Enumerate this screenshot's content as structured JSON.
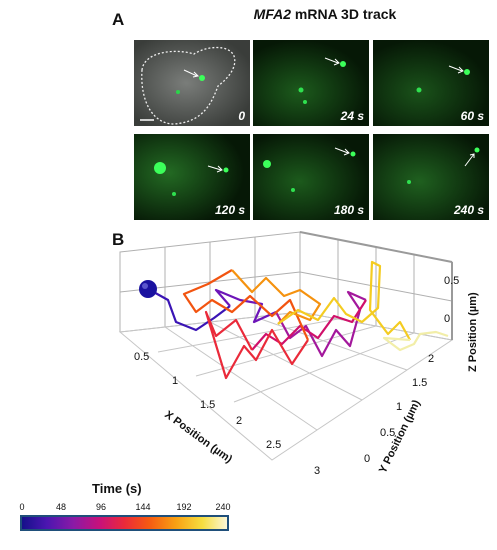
{
  "panel_a": {
    "label": "A",
    "title_gene": "MFA2",
    "title_rest": " mRNA 3D track",
    "tiles": [
      {
        "time": "0"
      },
      {
        "time": "24 s"
      },
      {
        "time": "60 s"
      },
      {
        "time": "120 s"
      },
      {
        "time": "180 s"
      },
      {
        "time": "240 s"
      }
    ]
  },
  "panel_b": {
    "label": "B",
    "x_axis_label": "X Position (µm)",
    "y_axis_label": "Y Position (µm)",
    "z_axis_label": "Z Position (µm)",
    "x_ticks": [
      "0.5",
      "1",
      "1.5",
      "2",
      "2.5",
      "3"
    ],
    "y_ticks": [
      "0",
      "0.5",
      "1",
      "1.5",
      "2"
    ],
    "z_ticks": [
      "0.5",
      "0"
    ]
  },
  "colorbar": {
    "title": "Time (s)",
    "ticks": [
      "0",
      "48",
      "96",
      "144",
      "192",
      "240"
    ]
  },
  "colors": {
    "cell_spot": "#3cff5a",
    "track_start_marker": "#1a12a0"
  }
}
